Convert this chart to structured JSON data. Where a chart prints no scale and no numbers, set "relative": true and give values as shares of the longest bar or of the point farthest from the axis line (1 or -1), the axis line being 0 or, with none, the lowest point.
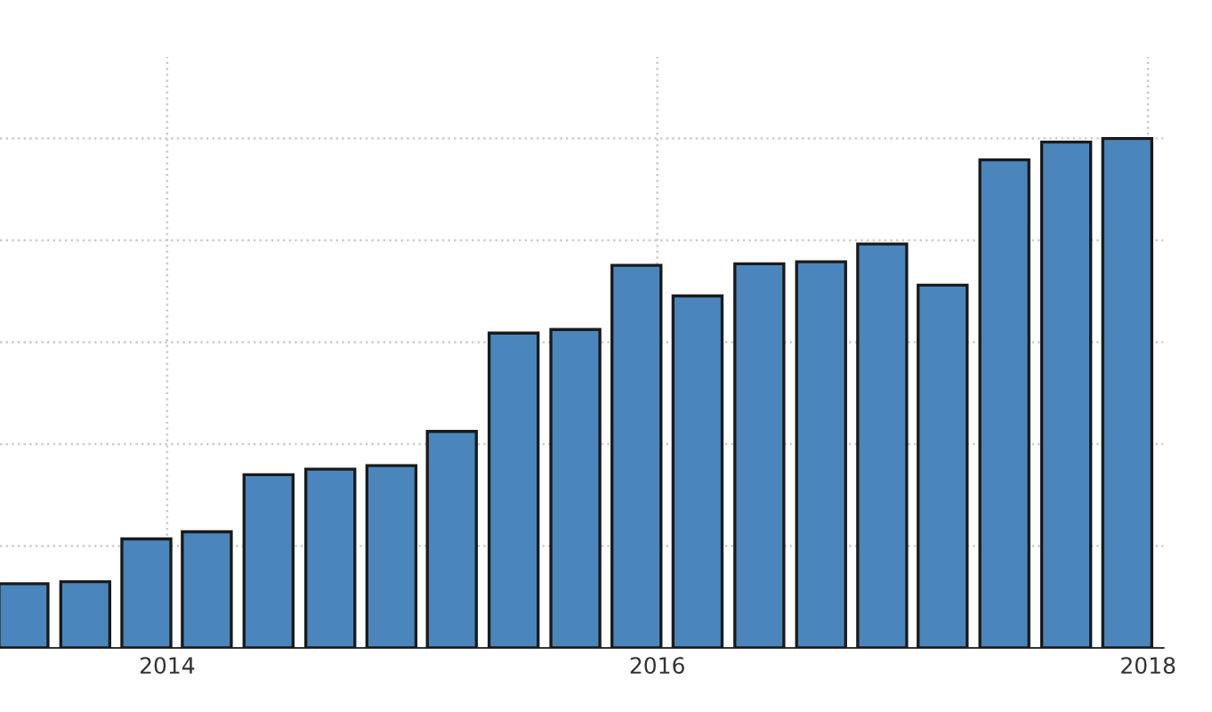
{
  "chart_data": {
    "type": "bar",
    "relative": true,
    "x": [
      "2013-06",
      "2013-09",
      "2013-12",
      "2014-03",
      "2014-06",
      "2014-09",
      "2014-12",
      "2015-03",
      "2015-06",
      "2015-09",
      "2015-12",
      "2016-03",
      "2016-06",
      "2016-09",
      "2016-12",
      "2017-03",
      "2017-06",
      "2017-09",
      "2017-12"
    ],
    "values": [
      0.126,
      0.13,
      0.214,
      0.228,
      0.34,
      0.351,
      0.358,
      0.425,
      0.618,
      0.625,
      0.751,
      0.691,
      0.754,
      0.758,
      0.793,
      0.712,
      0.958,
      0.993,
      1
    ],
    "color": "#4a86bb",
    "xlim": [
      "2013-04-27",
      "2018-01-24"
    ],
    "xticks": [
      {
        "value": "2014-01-01",
        "label": "2014"
      },
      {
        "value": "2016-01-01",
        "label": "2016"
      },
      {
        "value": "2018-01-01",
        "label": "2018"
      }
    ],
    "grid": true,
    "legend": false
  }
}
